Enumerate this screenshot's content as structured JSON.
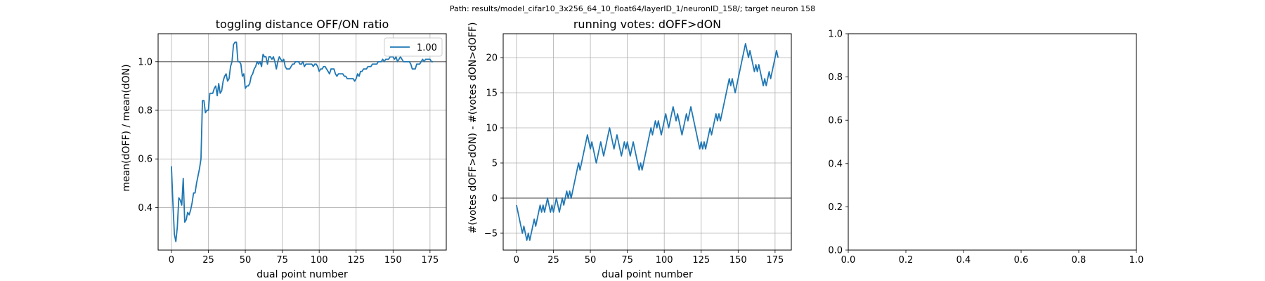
{
  "figure": {
    "suptitle": "Path: results/model_cifar10_3x256_64_10_float64/layerID_1/neuronID_158/; target neuron 158"
  },
  "chart_data": [
    {
      "type": "line",
      "title": "toggling distance OFF/ON ratio",
      "xlabel": "dual point number",
      "ylabel": "mean(dOFF) / mean(dON)",
      "xlim": [
        -9,
        186
      ],
      "ylim": [
        0.225,
        1.115
      ],
      "xticks": [
        0,
        25,
        50,
        75,
        100,
        125,
        150,
        175
      ],
      "yticks": [
        0.4,
        0.6,
        0.8,
        1.0
      ],
      "ytick_labels": [
        "0.4",
        "0.6",
        "0.8",
        "1.0"
      ],
      "grid": true,
      "hline": 1.0,
      "legend": {
        "position": "upper-right",
        "entries": [
          "1.00"
        ]
      },
      "series": [
        {
          "name": "1.00",
          "color": "#1f77b4",
          "points": [
            [
              0,
              0.57
            ],
            [
              1,
              0.42
            ],
            [
              2,
              0.29
            ],
            [
              3,
              0.26
            ],
            [
              4,
              0.32
            ],
            [
              5,
              0.44
            ],
            [
              6,
              0.43
            ],
            [
              7,
              0.41
            ],
            [
              8,
              0.52
            ],
            [
              9,
              0.34
            ],
            [
              10,
              0.35
            ],
            [
              11,
              0.38
            ],
            [
              12,
              0.37
            ],
            [
              13,
              0.39
            ],
            [
              14,
              0.42
            ],
            [
              15,
              0.46
            ],
            [
              16,
              0.46
            ],
            [
              17,
              0.5
            ],
            [
              18,
              0.53
            ],
            [
              19,
              0.56
            ],
            [
              20,
              0.6
            ],
            [
              21,
              0.84
            ],
            [
              22,
              0.84
            ],
            [
              23,
              0.79
            ],
            [
              24,
              0.8
            ],
            [
              25,
              0.8
            ],
            [
              26,
              0.87
            ],
            [
              27,
              0.87
            ],
            [
              28,
              0.87
            ],
            [
              29,
              0.89
            ],
            [
              30,
              0.9
            ],
            [
              31,
              0.86
            ],
            [
              32,
              0.91
            ],
            [
              33,
              0.87
            ],
            [
              34,
              0.88
            ],
            [
              35,
              0.92
            ],
            [
              36,
              0.94
            ],
            [
              37,
              0.95
            ],
            [
              38,
              0.92
            ],
            [
              39,
              0.93
            ],
            [
              40,
              0.98
            ],
            [
              41,
              1.0
            ],
            [
              42,
              1.07
            ],
            [
              43,
              1.08
            ],
            [
              44,
              1.08
            ],
            [
              45,
              1.0
            ],
            [
              46,
              1.0
            ],
            [
              47,
              0.99
            ],
            [
              48,
              0.94
            ],
            [
              49,
              0.95
            ],
            [
              50,
              0.89
            ],
            [
              51,
              0.9
            ],
            [
              52,
              0.9
            ],
            [
              53,
              0.91
            ],
            [
              54,
              0.94
            ],
            [
              55,
              0.95
            ],
            [
              56,
              0.97
            ],
            [
              57,
              0.98
            ],
            [
              58,
              1.0
            ],
            [
              59,
              0.99
            ],
            [
              60,
              1.0
            ],
            [
              61,
              0.98
            ],
            [
              62,
              1.03
            ],
            [
              63,
              1.02
            ],
            [
              64,
              1.02
            ],
            [
              65,
              0.99
            ],
            [
              66,
              1.02
            ],
            [
              67,
              1.02
            ],
            [
              68,
              1.01
            ],
            [
              69,
              1.02
            ],
            [
              70,
              1.0
            ],
            [
              71,
              0.97
            ],
            [
              72,
              1.0
            ],
            [
              73,
              1.02
            ],
            [
              74,
              1.01
            ],
            [
              75,
              1.0
            ],
            [
              76,
              1.01
            ],
            [
              77,
              0.98
            ],
            [
              78,
              0.97
            ],
            [
              79,
              0.97
            ],
            [
              80,
              0.97
            ],
            [
              81,
              0.98
            ],
            [
              82,
              0.99
            ],
            [
              83,
              0.99
            ],
            [
              84,
              1.0
            ],
            [
              85,
              1.0
            ],
            [
              86,
              1.0
            ],
            [
              87,
              0.99
            ],
            [
              88,
              0.99
            ],
            [
              89,
              1.0
            ],
            [
              90,
              0.98
            ],
            [
              91,
              0.99
            ],
            [
              92,
              0.99
            ],
            [
              93,
              0.99
            ],
            [
              94,
              0.99
            ],
            [
              95,
              0.99
            ],
            [
              96,
              0.98
            ],
            [
              97,
              0.99
            ],
            [
              98,
              0.99
            ],
            [
              99,
              0.98
            ],
            [
              100,
              0.96
            ],
            [
              101,
              0.97
            ],
            [
              102,
              0.97
            ],
            [
              103,
              0.98
            ],
            [
              104,
              0.98
            ],
            [
              105,
              0.97
            ],
            [
              106,
              0.96
            ],
            [
              107,
              0.95
            ],
            [
              108,
              0.97
            ],
            [
              109,
              0.97
            ],
            [
              110,
              0.97
            ],
            [
              111,
              0.95
            ],
            [
              112,
              0.94
            ],
            [
              113,
              0.95
            ],
            [
              114,
              0.95
            ],
            [
              115,
              0.95
            ],
            [
              116,
              0.95
            ],
            [
              117,
              0.94
            ],
            [
              118,
              0.94
            ],
            [
              119,
              0.93
            ],
            [
              120,
              0.93
            ],
            [
              121,
              0.93
            ],
            [
              122,
              0.93
            ],
            [
              123,
              0.93
            ],
            [
              124,
              0.92
            ],
            [
              125,
              0.93
            ],
            [
              126,
              0.95
            ],
            [
              127,
              0.94
            ],
            [
              128,
              0.96
            ],
            [
              129,
              0.96
            ],
            [
              130,
              0.97
            ],
            [
              131,
              0.97
            ],
            [
              132,
              0.97
            ],
            [
              133,
              0.98
            ],
            [
              134,
              0.98
            ],
            [
              135,
              0.98
            ],
            [
              136,
              0.99
            ],
            [
              137,
              0.99
            ],
            [
              138,
              0.99
            ],
            [
              139,
              0.99
            ],
            [
              140,
              1.0
            ],
            [
              141,
              1.0
            ],
            [
              142,
              1.0
            ],
            [
              143,
              1.01
            ],
            [
              144,
              1.0
            ],
            [
              145,
              1.01
            ],
            [
              146,
              1.01
            ],
            [
              147,
              1.01
            ],
            [
              148,
              1.02
            ],
            [
              149,
              1.02
            ],
            [
              150,
              1.02
            ],
            [
              151,
              1.01
            ],
            [
              152,
              1.02
            ],
            [
              153,
              1.0
            ],
            [
              154,
              1.01
            ],
            [
              155,
              1.02
            ],
            [
              156,
              1.01
            ],
            [
              157,
              1.0
            ],
            [
              158,
              1.0
            ],
            [
              159,
              1.0
            ],
            [
              160,
              1.0
            ],
            [
              161,
              1.0
            ],
            [
              162,
              0.99
            ],
            [
              163,
              0.97
            ],
            [
              164,
              0.97
            ],
            [
              165,
              0.97
            ],
            [
              166,
              0.99
            ],
            [
              167,
              0.99
            ],
            [
              168,
              0.99
            ],
            [
              169,
              1.0
            ],
            [
              170,
              1.01
            ],
            [
              171,
              1.0
            ],
            [
              172,
              1.01
            ],
            [
              173,
              1.01
            ],
            [
              174,
              1.01
            ],
            [
              175,
              1.01
            ],
            [
              176,
              1.0
            ],
            [
              177,
              1.0
            ]
          ]
        }
      ]
    },
    {
      "type": "line",
      "title": "running votes: dOFF>dON",
      "xlabel": "dual point number",
      "ylabel": "#(votes dOFF>dON) - #(votes dON>dOFF)",
      "xlim": [
        -9,
        186
      ],
      "ylim": [
        -7.4,
        23.4
      ],
      "xticks": [
        0,
        25,
        50,
        75,
        100,
        125,
        150,
        175
      ],
      "yticks": [
        -5,
        0,
        5,
        10,
        15,
        20
      ],
      "ytick_labels": [
        "−5",
        "0",
        "5",
        "10",
        "15",
        "20"
      ],
      "grid": true,
      "hline": 0,
      "series": [
        {
          "color": "#1f77b4",
          "x_start": 0,
          "values": [
            -1,
            -2,
            -3,
            -4,
            -5,
            -4,
            -5,
            -6,
            -5,
            -6,
            -5,
            -4,
            -3,
            -4,
            -3,
            -2,
            -1,
            -2,
            -1,
            -2,
            -1,
            0,
            -1,
            -2,
            -1,
            -2,
            -1,
            0,
            -1,
            -2,
            -1,
            0,
            -1,
            0,
            1,
            0,
            1,
            0,
            1,
            2,
            3,
            4,
            5,
            4,
            5,
            6,
            7,
            8,
            9,
            8,
            7,
            8,
            7,
            6,
            5,
            6,
            7,
            8,
            7,
            6,
            7,
            8,
            9,
            10,
            9,
            8,
            7,
            8,
            9,
            8,
            7,
            6,
            7,
            8,
            7,
            8,
            7,
            6,
            7,
            8,
            7,
            6,
            5,
            4,
            5,
            4,
            5,
            6,
            7,
            8,
            9,
            10,
            9,
            10,
            11,
            10,
            11,
            10,
            9,
            10,
            11,
            12,
            11,
            10,
            11,
            12,
            13,
            12,
            11,
            12,
            11,
            10,
            9,
            10,
            11,
            12,
            11,
            12,
            13,
            12,
            11,
            10,
            9,
            8,
            7,
            8,
            7,
            8,
            7,
            8,
            9,
            10,
            9,
            10,
            11,
            12,
            11,
            12,
            11,
            12,
            13,
            14,
            15,
            16,
            17,
            16,
            17,
            16,
            15,
            16,
            17,
            18,
            19,
            20,
            21,
            22,
            21,
            20,
            21,
            20,
            19,
            18,
            19,
            18,
            19,
            18,
            17,
            16,
            17,
            16,
            17,
            18,
            17,
            18,
            19,
            20,
            21,
            20
          ]
        }
      ]
    },
    {
      "type": "line",
      "title": "",
      "xlim": [
        0,
        1
      ],
      "ylim": [
        0,
        1
      ],
      "xticks": [
        0,
        0.2,
        0.4,
        0.6,
        0.8,
        1.0
      ],
      "yticks": [
        0,
        0.2,
        0.4,
        0.6,
        0.8,
        1.0
      ],
      "xtick_labels": [
        "0.0",
        "0.2",
        "0.4",
        "0.6",
        "0.8",
        "1.0"
      ],
      "ytick_labels": [
        "0.0",
        "0.2",
        "0.4",
        "0.6",
        "0.8",
        "1.0"
      ],
      "grid": false,
      "series": []
    }
  ]
}
